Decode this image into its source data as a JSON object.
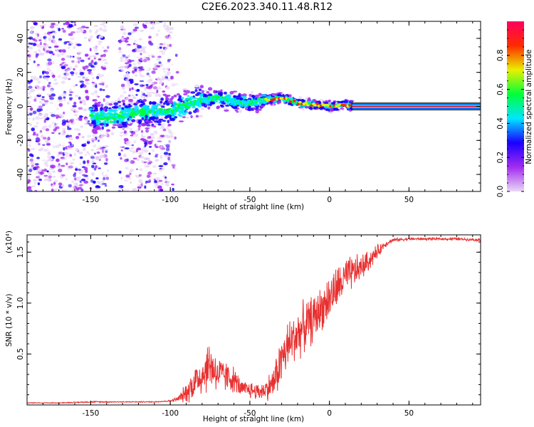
{
  "title": "C2E6.2023.340.11.48.R12",
  "chart_data": [
    {
      "type": "heatmap",
      "title": "C2E6.2023.340.11.48.R12",
      "xlabel": "Height of straight line (km)",
      "ylabel": "Frequency (Hz)",
      "xlim": [
        -190,
        95
      ],
      "ylim": [
        -50,
        50
      ],
      "xticks": [
        -150,
        -100,
        -50,
        0,
        50
      ],
      "yticks": [
        -40,
        -20,
        0,
        20,
        40
      ],
      "colorbar": {
        "label": "Normalized spectral amplitude",
        "range": [
          0.0,
          1.0
        ],
        "ticks": [
          "0.0",
          "0.2",
          "0.4",
          "0.6",
          "0.8"
        ],
        "colors": [
          "#e9d7f5",
          "#a32cf0",
          "#1a00ff",
          "#00e5ff",
          "#00ff3a",
          "#e8f000",
          "#ff2a00",
          "#ff0060"
        ]
      },
      "peak_track": {
        "x": [
          -150,
          -140,
          -130,
          -120,
          -110,
          -100,
          -90,
          -80,
          -70,
          -60,
          -50,
          -40,
          -30,
          -20,
          -10,
          0,
          10,
          20,
          50,
          95
        ],
        "y": [
          -6,
          -7,
          -5,
          -4,
          -3,
          -3,
          1,
          4,
          5,
          3,
          2,
          4,
          5,
          2,
          1,
          0,
          1,
          0,
          0,
          0
        ]
      }
    },
    {
      "type": "line",
      "xlabel": "Height of straight line (km)",
      "ylabel": "SNR (10 * v/v)",
      "y_multiplier": "(x10⁴)",
      "xlim": [
        -190,
        95
      ],
      "ylim": [
        0,
        1.67
      ],
      "xticks": [
        -150,
        -100,
        -50,
        0,
        50
      ],
      "yticks": [
        0.5,
        1.0,
        1.5
      ],
      "ytick_labels": [
        "0.5",
        "1.0",
        "1.5"
      ],
      "color": "#e83030",
      "x": [
        -190,
        -170,
        -150,
        -140,
        -130,
        -120,
        -110,
        -100,
        -95,
        -90,
        -85,
        -80,
        -75,
        -70,
        -65,
        -60,
        -55,
        -50,
        -45,
        -40,
        -35,
        -30,
        -25,
        -20,
        -15,
        -10,
        -5,
        0,
        5,
        10,
        15,
        20,
        25,
        30,
        35,
        40,
        50,
        60,
        70,
        80,
        95
      ],
      "y": [
        0.02,
        0.02,
        0.03,
        0.03,
        0.03,
        0.03,
        0.03,
        0.04,
        0.06,
        0.12,
        0.22,
        0.3,
        0.4,
        0.3,
        0.28,
        0.25,
        0.15,
        0.15,
        0.13,
        0.15,
        0.22,
        0.45,
        0.6,
        0.7,
        0.78,
        0.85,
        0.95,
        1.05,
        1.15,
        1.25,
        1.3,
        1.35,
        1.42,
        1.5,
        1.58,
        1.62,
        1.63,
        1.63,
        1.63,
        1.63,
        1.62
      ],
      "noise": [
        0.005,
        0.005,
        0.008,
        0.008,
        0.006,
        0.006,
        0.006,
        0.01,
        0.03,
        0.12,
        0.2,
        0.25,
        0.3,
        0.22,
        0.18,
        0.15,
        0.1,
        0.1,
        0.1,
        0.12,
        0.2,
        0.3,
        0.3,
        0.3,
        0.28,
        0.28,
        0.25,
        0.28,
        0.25,
        0.22,
        0.2,
        0.15,
        0.12,
        0.08,
        0.04,
        0.02,
        0.015,
        0.015,
        0.015,
        0.015,
        0.015
      ]
    }
  ]
}
